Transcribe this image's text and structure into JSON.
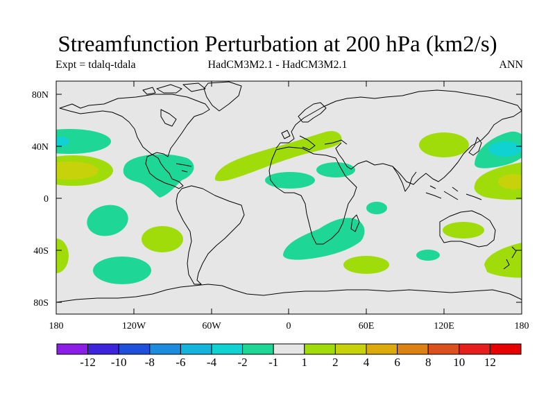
{
  "title": "Streamfunction Perturbation at 200 hPa (km2/s)",
  "subtitle_left": "Expt = tdalq-tdala",
  "subtitle_center": "HadCM3M2.1 - HadCM3M2.1",
  "subtitle_right": "ANN",
  "lat_labels": [
    "80N",
    "40N",
    "0",
    "40S",
    "80S"
  ],
  "lon_labels": [
    "180",
    "120W",
    "60W",
    "0",
    "60E",
    "120E",
    "180"
  ],
  "colorbar": {
    "labels": [
      "-12",
      "-10",
      "-8",
      "-6",
      "-4",
      "-2",
      "-1",
      "1",
      "2",
      "4",
      "6",
      "8",
      "10",
      "12"
    ],
    "colors": [
      "#8a1ee6",
      "#3c24dc",
      "#1e50dc",
      "#1e8cdc",
      "#14b4dc",
      "#10d2d2",
      "#1ed796",
      "#e6e6e6",
      "#a0dc0a",
      "#c8d20a",
      "#dcaa0a",
      "#dc8214",
      "#dc501e",
      "#e61e1e",
      "#e60000"
    ]
  },
  "chart_data": {
    "type": "heatmap",
    "variable": "Streamfunction Perturbation at 200 hPa",
    "units": "km2/s",
    "experiment": "tdalq-tdala",
    "models": "HadCM3M2.1 - HadCM3M2.1",
    "season": "ANN",
    "contour_levels": [
      -12,
      -10,
      -8,
      -6,
      -4,
      -2,
      -1,
      1,
      2,
      4,
      6,
      8,
      10,
      12
    ],
    "xlim": [
      -180,
      180
    ],
    "ylim": [
      -90,
      90
    ],
    "anomalies": [
      {
        "lon": -175,
        "lat": 42,
        "value": -2
      },
      {
        "lon": -165,
        "lat": 22,
        "value": 4
      },
      {
        "lon": -100,
        "lat": 20,
        "value": -2
      },
      {
        "lon": -140,
        "lat": -15,
        "value": -2
      },
      {
        "lon": -105,
        "lat": -30,
        "value": 2
      },
      {
        "lon": -130,
        "lat": -52,
        "value": -2
      },
      {
        "lon": -178,
        "lat": -45,
        "value": 2
      },
      {
        "lon": -30,
        "lat": 25,
        "value": 2
      },
      {
        "lon": 35,
        "lat": 38,
        "value": 2
      },
      {
        "lon": 15,
        "lat": 15,
        "value": -2
      },
      {
        "lon": 25,
        "lat": 20,
        "value": -2
      },
      {
        "lon": 35,
        "lat": -32,
        "value": -2
      },
      {
        "lon": 65,
        "lat": -8,
        "value": -2
      },
      {
        "lon": 60,
        "lat": -48,
        "value": 2
      },
      {
        "lon": 125,
        "lat": 40,
        "value": 2
      },
      {
        "lon": 170,
        "lat": 38,
        "value": -4
      },
      {
        "lon": 172,
        "lat": 12,
        "value": 4
      },
      {
        "lon": 120,
        "lat": -25,
        "value": 2
      },
      {
        "lon": 112,
        "lat": -42,
        "value": -2
      },
      {
        "lon": 172,
        "lat": -45,
        "value": 2
      }
    ]
  }
}
